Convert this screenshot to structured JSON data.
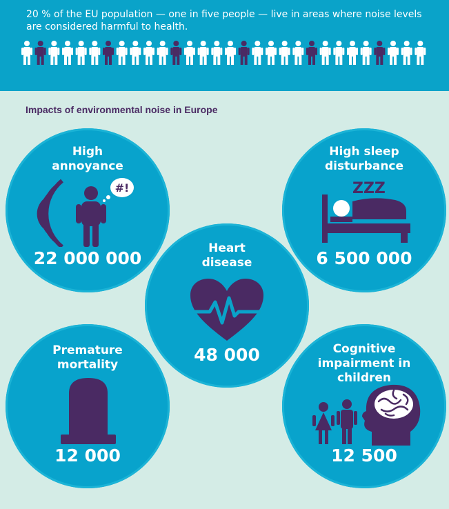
{
  "banner": {
    "text": "20 % of the EU population — one in five people — live in areas where noise levels are considered harmful to health.",
    "people_count": 30,
    "highlight_every": 5,
    "color_light": "#ffffff",
    "color_highlight": "#4a2a63"
  },
  "heading": "Impacts of environmental noise in Europe",
  "impacts": [
    {
      "title": "High\nannoyance",
      "value": "22 000 000",
      "icon": "sound-waves-person-icon"
    },
    {
      "title": "High sleep\ndisturbance",
      "value": "6 500 000",
      "icon": "bed-sleep-icon"
    },
    {
      "title": "Heart\ndisease",
      "value": "48 000",
      "icon": "heart-pulse-icon"
    },
    {
      "title": "Premature\nmortality",
      "value": "12 000",
      "icon": "gravestone-icon"
    },
    {
      "title": "Cognitive\nimpairment in\nchildren",
      "value": "12 500",
      "icon": "children-brain-icon"
    }
  ],
  "icons": {
    "speech_bubble_text": "#!",
    "sleep_text": "ZZZ"
  },
  "colors": {
    "background": "#d4ece6",
    "banner": "#0aa3c9",
    "circle": "#08a3cc",
    "icon": "#4a2a63",
    "text": "#ffffff"
  }
}
